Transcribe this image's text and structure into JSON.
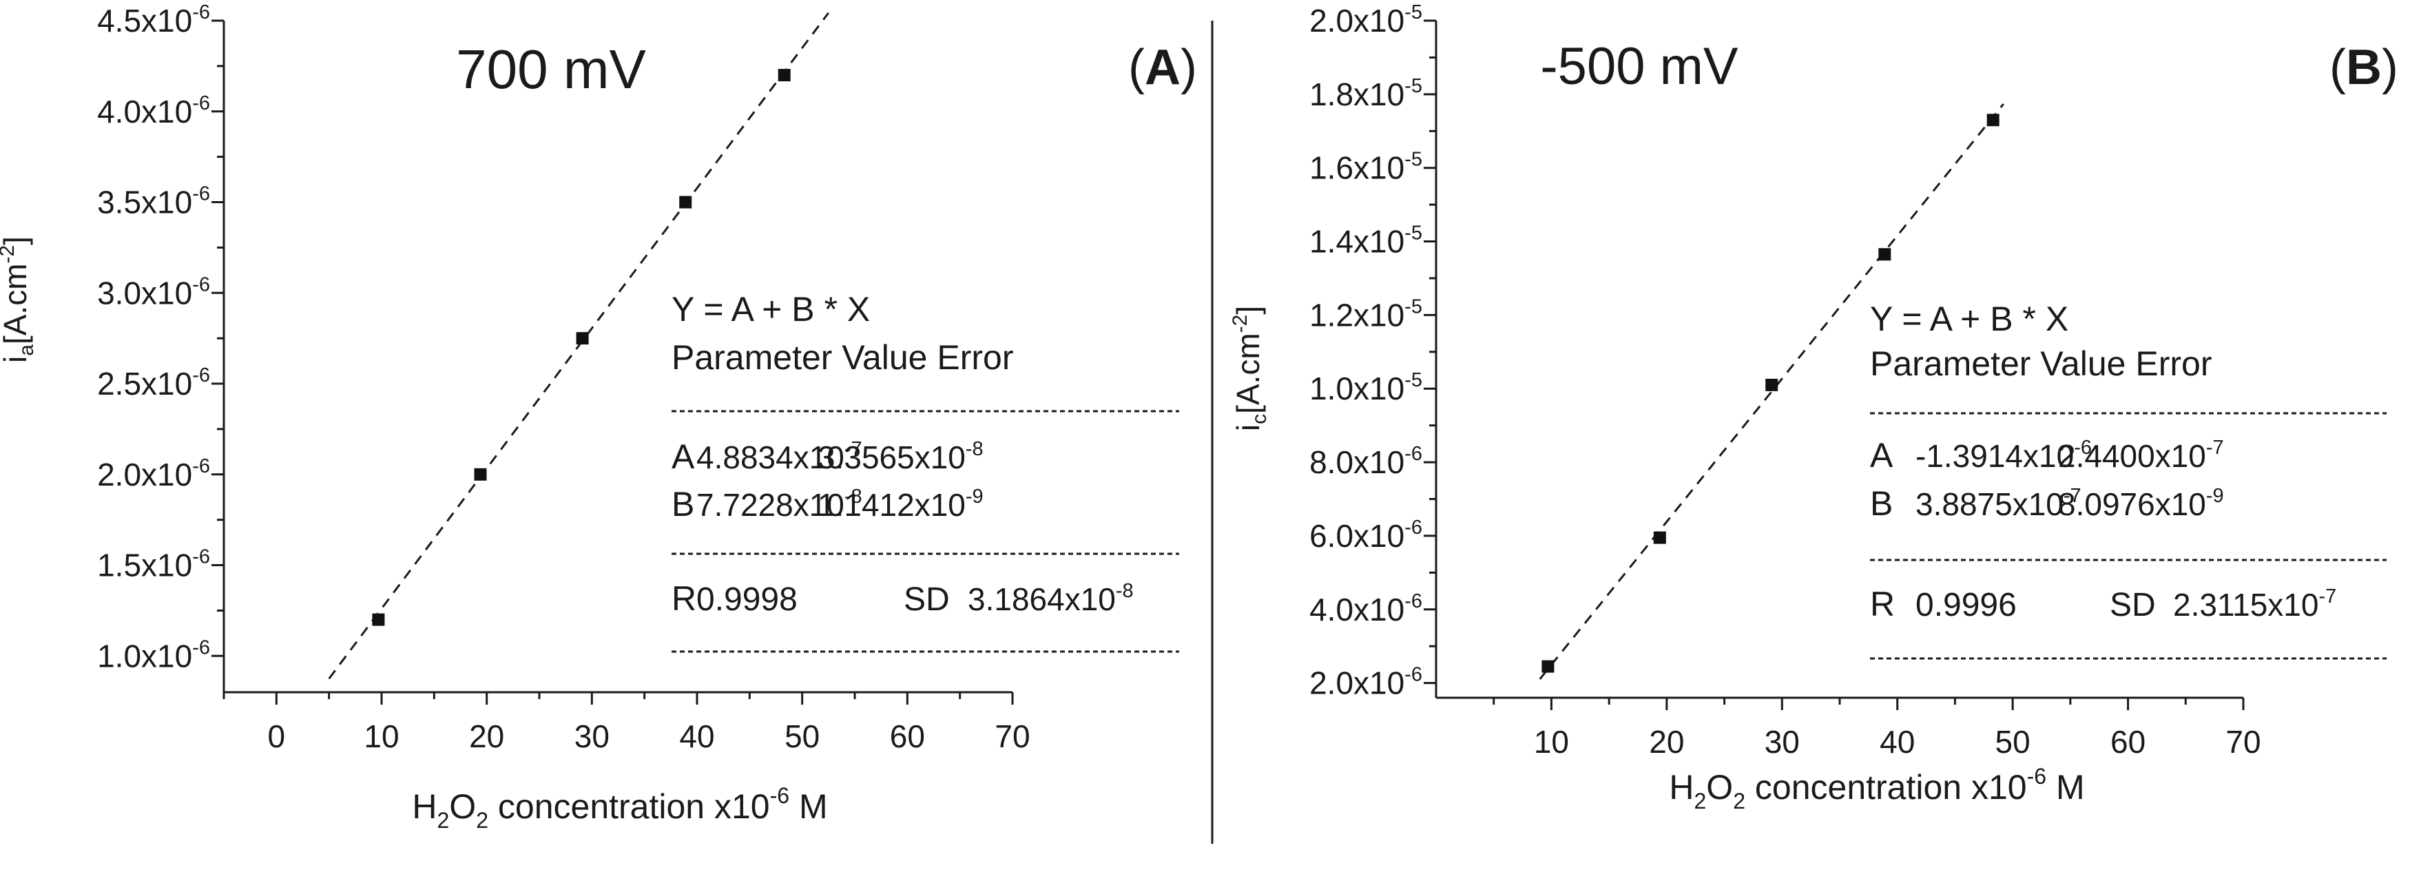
{
  "chart_data": [
    {
      "type": "scatter",
      "panel_label": "A",
      "title": "700 mV",
      "xlabel": "H2O2 concentration x10-6 M",
      "ylabel": "ia[A.cm-2]",
      "xlim": [
        -5,
        70
      ],
      "ylim": [
        8e-07,
        4.5e-06
      ],
      "x_ticks": [
        0,
        10,
        20,
        30,
        40,
        50,
        60,
        70
      ],
      "x_tick_labels": [
        "0",
        "10",
        "20",
        "30",
        "40",
        "50",
        "60",
        "70"
      ],
      "y_ticks": [
        1e-06,
        1.5e-06,
        2e-06,
        2.5e-06,
        3e-06,
        3.5e-06,
        4e-06,
        4.5e-06
      ],
      "y_tick_mantissas": [
        "1.0x10",
        "1.5x10",
        "2.0x10",
        "2.5x10",
        "3.0x10",
        "3.5x10",
        "4.0x10",
        "4.5x10"
      ],
      "y_tick_exponent": "-6",
      "points": {
        "x": [
          9.7,
          19.4,
          29.1,
          38.9,
          48.3
        ],
        "y": [
          1.2e-06,
          2e-06,
          2.75e-06,
          3.5e-06,
          4.2e-06
        ]
      },
      "fit": {
        "intercept": 4.8834e-07,
        "slope": 7.7228e-08,
        "x_range": [
          5,
          52.5
        ]
      },
      "fit_table": {
        "equation": "Y = A + B * X",
        "header": "Parameter  Value  Error",
        "separator": "------------------------------------------------",
        "rowA_name": "A",
        "rowA_value": "4.8834x10",
        "rowA_value_exp": "-7",
        "rowA_error": "3.3565x10",
        "rowA_error_exp": "-8",
        "rowB_name": "B",
        "rowB_value": "7.7228x10",
        "rowB_value_exp": "-8",
        "rowB_error": "1.1412x10",
        "rowB_error_exp": "-9",
        "R_label": "R",
        "R_value": "0.9998",
        "SD_label": "SD",
        "SD_value": "3.1864x10",
        "SD_exp": "-8"
      }
    },
    {
      "type": "scatter",
      "panel_label": "B",
      "title": "-500 mV",
      "xlabel": "H2O2 concentration x10-6 M",
      "ylabel": "ic[A.cm-2]",
      "xlim": [
        0,
        70
      ],
      "ylim": [
        1.6e-06,
        2e-05
      ],
      "x_ticks": [
        10,
        20,
        30,
        40,
        50,
        60,
        70
      ],
      "x_tick_labels": [
        "10",
        "20",
        "30",
        "40",
        "50",
        "60",
        "70"
      ],
      "y_ticks": [
        2e-06,
        4e-06,
        6e-06,
        8e-06,
        1e-05,
        1.2e-05,
        1.4e-05,
        1.6e-05,
        1.8e-05,
        2e-05
      ],
      "y_tick_mantissas": [
        "2.0x10",
        "4.0x10",
        "6.0x10",
        "8.0x10",
        "1.0x10",
        "1.2x10",
        "1.4x10",
        "1.6x10",
        "1.8x10",
        "2.0x10"
      ],
      "y_tick_exponents": [
        "-6",
        "-6",
        "-6",
        "-6",
        "-5",
        "-5",
        "-5",
        "-5",
        "-5",
        "-5"
      ],
      "points": {
        "x": [
          9.7,
          19.4,
          29.1,
          38.9,
          48.3
        ],
        "y": [
          2.45e-06,
          5.95e-06,
          1.01e-05,
          1.365e-05,
          1.73e-05
        ]
      },
      "fit": {
        "intercept": -1.3914e-06,
        "slope": 3.8875e-07,
        "x_range": [
          9.0,
          49.2
        ]
      },
      "fit_table": {
        "equation": "Y = A + B * X",
        "header": "Parameter  Value  Error",
        "separator": "------------------------------------------------",
        "rowA_name": "A",
        "rowA_value": "-1.3914x10",
        "rowA_value_exp": "-6",
        "rowA_error": "2.4400x10",
        "rowA_error_exp": "-7",
        "rowB_name": "B",
        "rowB_value": "3.8875x10",
        "rowB_value_exp": "-7",
        "rowB_error": "8.0976x10",
        "rowB_error_exp": "-9",
        "R_label": "R",
        "R_value": "0.9996",
        "SD_label": "SD",
        "SD_value": "2.3115x10",
        "SD_exp": "-7"
      }
    }
  ]
}
